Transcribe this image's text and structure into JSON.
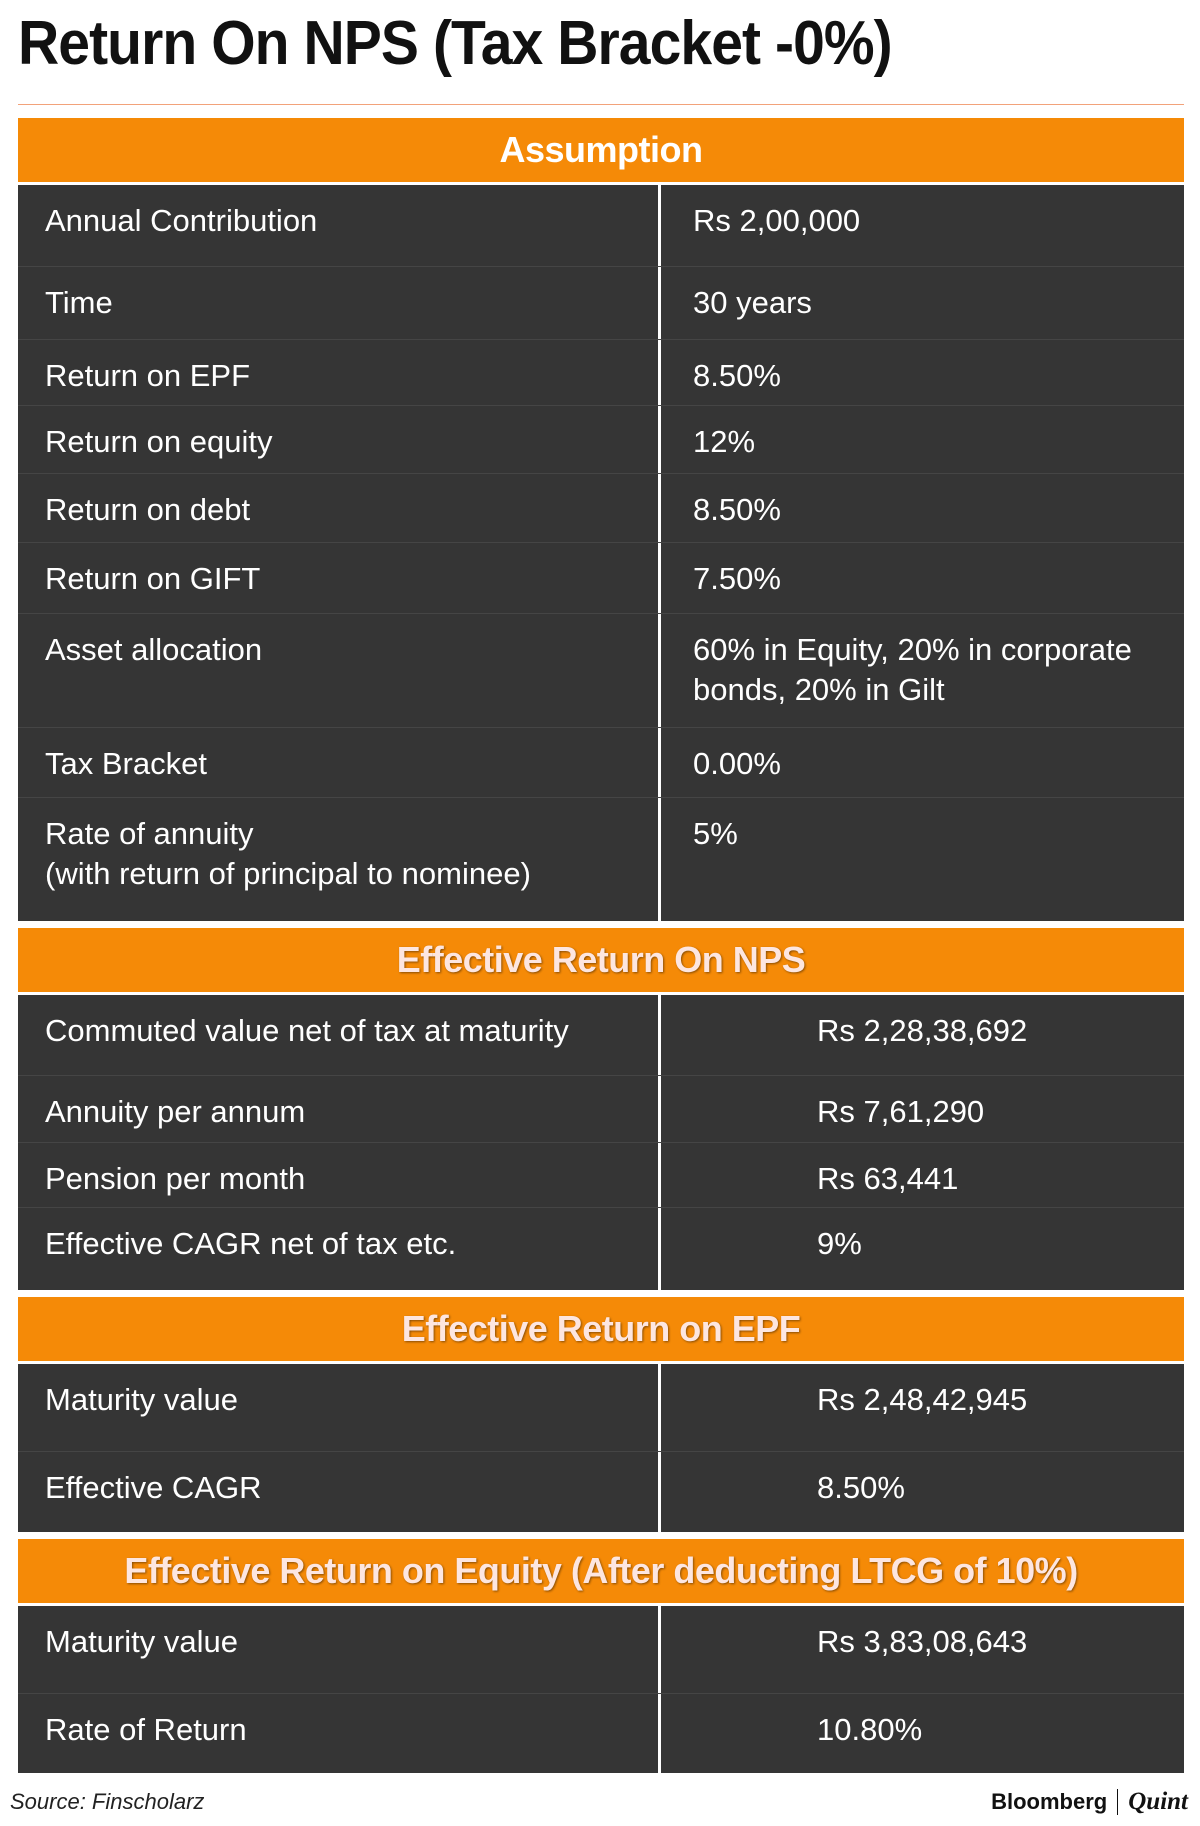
{
  "title": "Return On NPS (Tax Bracket -0%)",
  "sections": [
    {
      "heading": "Assumption",
      "rows": [
        {
          "label": "Annual Contribution",
          "value": "Rs 2,00,000"
        },
        {
          "label": "Time",
          "value": "30 years"
        },
        {
          "label": "Return on EPF",
          "value": "8.50%"
        },
        {
          "label": "Return on equity",
          "value": "12%"
        },
        {
          "label": "Return on debt",
          "value": "8.50%"
        },
        {
          "label": "Return on GIFT",
          "value": "7.50%"
        },
        {
          "label": "Asset allocation",
          "value": "60% in Equity, 20% in corporate bonds, 20% in Gilt"
        },
        {
          "label": "Tax Bracket",
          "value": "0.00%"
        },
        {
          "label": "Rate of annuity\n(with return of principal to nominee)",
          "value": "5%"
        }
      ]
    },
    {
      "heading": "Effective Return On NPS",
      "rows": [
        {
          "label": "Commuted value net of tax at maturity",
          "value": "Rs 2,28,38,692"
        },
        {
          "label": "Annuity per annum",
          "value": "Rs 7,61,290"
        },
        {
          "label": "Pension per month",
          "value": "Rs 63,441"
        },
        {
          "label": "Effective CAGR net of tax etc.",
          "value": "9%"
        }
      ]
    },
    {
      "heading": "Effective Return on EPF",
      "rows": [
        {
          "label": "Maturity value",
          "value": "Rs 2,48,42,945"
        },
        {
          "label": "Effective CAGR",
          "value": "8.50%"
        }
      ]
    },
    {
      "heading": "Effective Return on Equity (After deducting LTCG of 10%)",
      "rows": [
        {
          "label": "Maturity value",
          "value": "Rs 3,83,08,643"
        },
        {
          "label": "Rate of Return",
          "value": "10.80%"
        }
      ]
    }
  ],
  "footer": {
    "source": "Source: Finscholarz",
    "brand": "Bloomberg",
    "partner": "Quint"
  }
}
